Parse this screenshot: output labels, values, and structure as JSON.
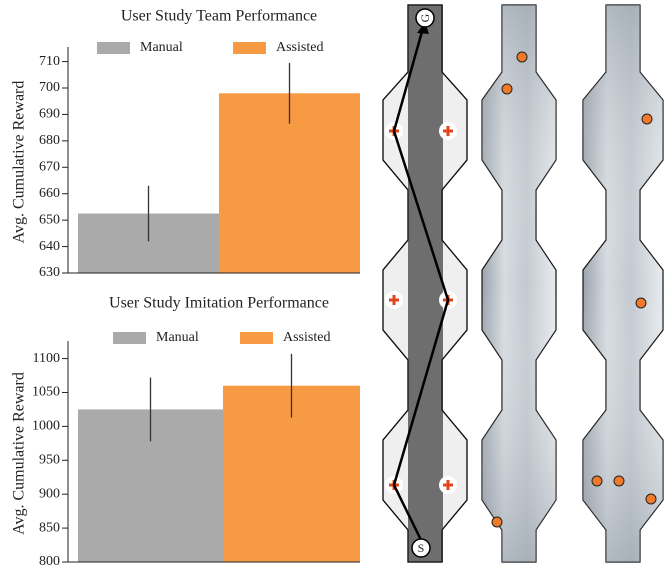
{
  "chart_data": [
    {
      "type": "bar",
      "title": "User Study Team Performance",
      "ylabel": "Avg. Cumulative Reward",
      "categories": [
        "Manual",
        "Assisted"
      ],
      "values": [
        652.5,
        698
      ],
      "errors": [
        10.5,
        11.5
      ],
      "colors": [
        "#aaaaaa",
        "#f79a44"
      ],
      "ylim": [
        630,
        714
      ],
      "yticks": [
        630,
        640,
        650,
        660,
        670,
        680,
        690,
        700,
        710
      ]
    },
    {
      "type": "bar",
      "title": "User Study Imitation Performance",
      "ylabel": "Avg. Cumulative Reward",
      "categories": [
        "Manual",
        "Assisted"
      ],
      "values": [
        1025,
        1060
      ],
      "errors": [
        47,
        47
      ],
      "colors": [
        "#aaaaaa",
        "#f79a44"
      ],
      "ylim": [
        800,
        1120
      ],
      "yticks": [
        800,
        850,
        900,
        950,
        1000,
        1050,
        1100
      ]
    }
  ],
  "maps": {
    "start_label": "S",
    "goal_label": "G"
  }
}
